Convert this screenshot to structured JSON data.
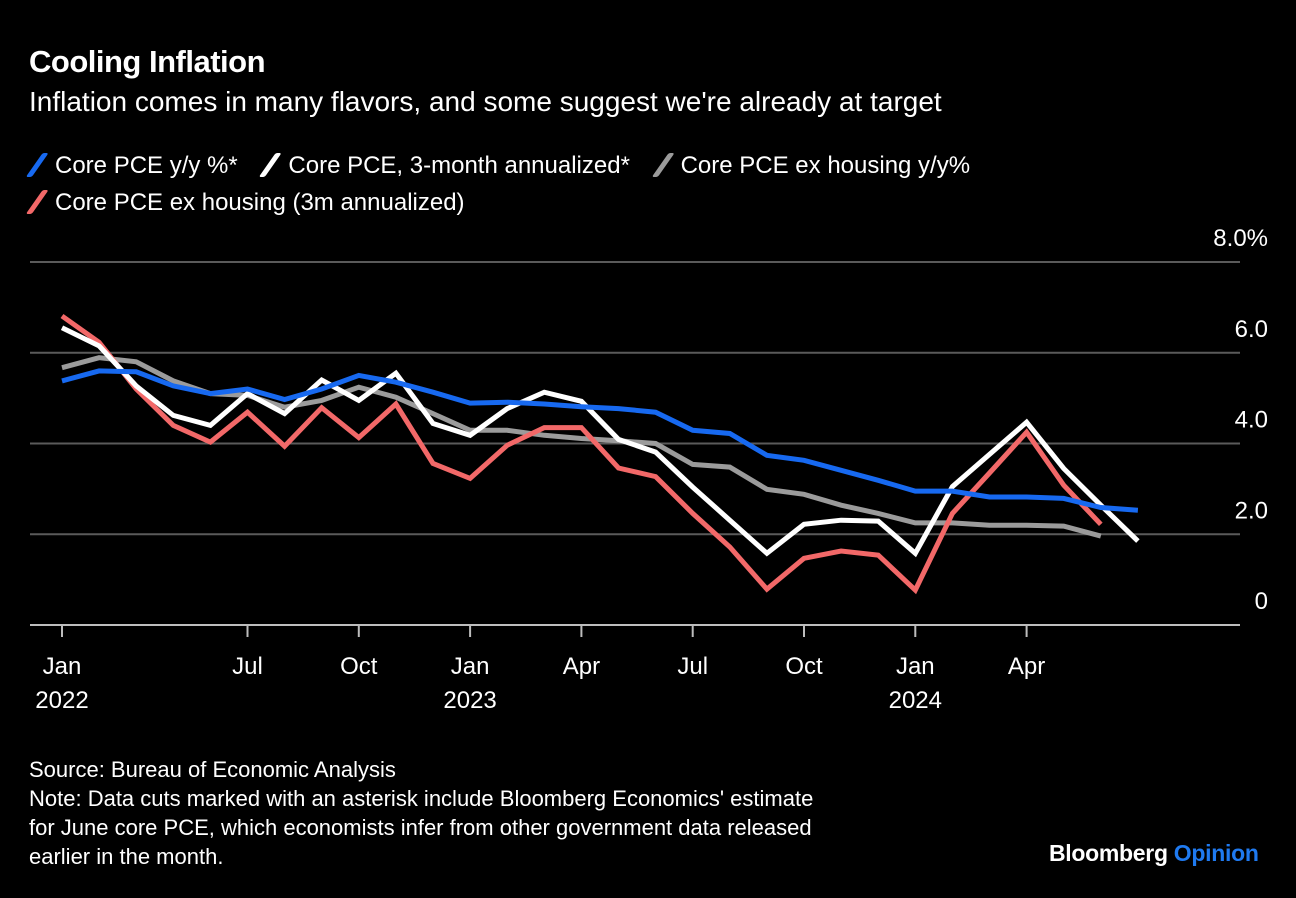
{
  "colors": {
    "background": "#000000",
    "grid": "#5a5a5a",
    "axis": "#bdbdbd"
  },
  "chart_data": {
    "type": "line",
    "title": "Cooling Inflation",
    "subtitle": "Inflation comes in many flavors, and some suggest we're already at target",
    "x": [
      "2022-01",
      "2022-02",
      "2022-03",
      "2022-04",
      "2022-05",
      "2022-06",
      "2022-07",
      "2022-08",
      "2022-09",
      "2022-10",
      "2022-11",
      "2022-12",
      "2023-01",
      "2023-02",
      "2023-03",
      "2023-04",
      "2023-05",
      "2023-06",
      "2023-07",
      "2023-08",
      "2023-09",
      "2023-10",
      "2023-11",
      "2023-12",
      "2024-01",
      "2024-02",
      "2024-03",
      "2024-04",
      "2024-05",
      "2024-06"
    ],
    "series": [
      {
        "name": "Core PCE y/y %*",
        "color": "#1769f0",
        "values": [
          5.38,
          5.6,
          5.58,
          5.27,
          5.1,
          5.2,
          4.97,
          5.2,
          5.5,
          5.35,
          5.13,
          4.89,
          4.91,
          4.87,
          4.81,
          4.77,
          4.69,
          4.29,
          4.22,
          3.74,
          3.63,
          3.41,
          3.19,
          2.95,
          2.95,
          2.82,
          2.82,
          2.79,
          2.59,
          2.53
        ]
      },
      {
        "name": "Core PCE, 3-month annualized*",
        "color": "#ffffff",
        "values": [
          6.55,
          6.15,
          5.27,
          4.62,
          4.4,
          5.1,
          4.66,
          5.4,
          4.95,
          5.55,
          4.44,
          4.18,
          4.77,
          5.13,
          4.93,
          4.09,
          3.81,
          3.04,
          2.31,
          1.58,
          2.22,
          2.31,
          2.29,
          1.58,
          3.05,
          3.76,
          4.47,
          3.45,
          2.64,
          1.85
        ]
      },
      {
        "name": "Core PCE ex housing y/y%",
        "color": "#9b9b9b",
        "values": [
          5.67,
          5.89,
          5.8,
          5.38,
          5.1,
          5.06,
          4.8,
          4.95,
          5.24,
          5.02,
          4.66,
          4.29,
          4.29,
          4.18,
          4.11,
          4.06,
          4.0,
          3.54,
          3.48,
          2.99,
          2.88,
          2.64,
          2.46,
          2.25,
          2.25,
          2.2,
          2.2,
          2.18,
          1.96,
          null
        ]
      },
      {
        "name": "Core PCE ex housing (3m annualized)",
        "color": "#f26868",
        "values": [
          6.81,
          6.23,
          5.2,
          4.4,
          4.03,
          4.69,
          3.94,
          4.79,
          4.13,
          4.87,
          3.56,
          3.23,
          3.96,
          4.35,
          4.35,
          3.46,
          3.27,
          2.46,
          1.72,
          0.79,
          1.47,
          1.63,
          1.54,
          0.77,
          2.46,
          3.35,
          4.25,
          3.08,
          2.22,
          null
        ]
      }
    ],
    "yticks": [
      {
        "value": 8,
        "label": "8.0%"
      },
      {
        "value": 6,
        "label": "6.0"
      },
      {
        "value": 4,
        "label": "4.0"
      },
      {
        "value": 2,
        "label": "2.0"
      },
      {
        "value": 0,
        "label": "0"
      }
    ],
    "ylim": [
      0,
      8
    ],
    "xticks": [
      {
        "at": "2022-01",
        "label": "Jan",
        "year": "2022"
      },
      {
        "at": "2022-06",
        "label": "Jul",
        "year": ""
      },
      {
        "at": "2022-09",
        "label": "Oct",
        "year": ""
      },
      {
        "at": "2022-12",
        "label": "Jan",
        "year": "2023"
      },
      {
        "at": "2023-03",
        "label": "Apr",
        "year": ""
      },
      {
        "at": "2023-06",
        "label": "Jul",
        "year": ""
      },
      {
        "at": "2023-09",
        "label": "Oct",
        "year": ""
      },
      {
        "at": "2023-12",
        "label": "Jan",
        "year": "2024"
      },
      {
        "at": "2024-03",
        "label": "Apr",
        "year": ""
      }
    ],
    "grid": true,
    "legend": "top-left"
  },
  "footer": {
    "source": "Source: Bureau of Economic Analysis",
    "note_lines": [
      "Note: Data cuts marked with an asterisk include Bloomberg Economics' estimate",
      "for June core PCE, which economists infer from other government data released",
      "earlier in the month."
    ]
  },
  "logo": {
    "brand": "Bloomberg",
    "section": "Opinion"
  }
}
